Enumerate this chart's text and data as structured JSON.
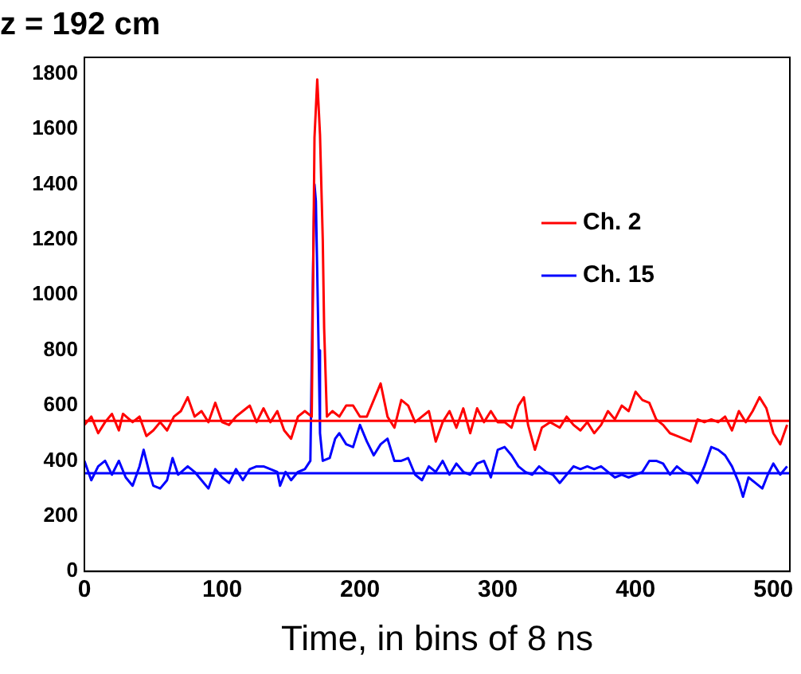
{
  "chart_data": {
    "type": "line",
    "title": "z = 192 cm",
    "xlabel": "Time, in bins of 8 ns",
    "xlim": [
      0,
      512
    ],
    "xticks": [
      0,
      100,
      200,
      300,
      400,
      500
    ],
    "ylim": [
      0,
      1860
    ],
    "yticks": [
      0,
      200,
      400,
      600,
      800,
      1000,
      1200,
      1400,
      1600,
      1800
    ],
    "grid": false,
    "legend": "right",
    "marker": "none",
    "line_style": "solid",
    "ref_lines": [
      {
        "axis": "y",
        "value": 545,
        "color": "#ff0000"
      },
      {
        "axis": "y",
        "value": 355,
        "color": "#0000ff"
      }
    ],
    "series": [
      {
        "name": "Ch. 2",
        "color": "#ff0000",
        "x": [
          0,
          5,
          10,
          15,
          20,
          25,
          28,
          35,
          40,
          45,
          50,
          55,
          60,
          65,
          70,
          75,
          80,
          85,
          90,
          95,
          100,
          105,
          110,
          115,
          120,
          125,
          130,
          135,
          140,
          145,
          150,
          155,
          160,
          165,
          167,
          169,
          171,
          173,
          174,
          176,
          180,
          185,
          190,
          195,
          200,
          205,
          210,
          215,
          220,
          225,
          230,
          235,
          240,
          245,
          250,
          255,
          260,
          265,
          270,
          275,
          280,
          285,
          290,
          295,
          300,
          305,
          310,
          315,
          319,
          322,
          327,
          332,
          338,
          345,
          350,
          355,
          360,
          365,
          370,
          375,
          380,
          385,
          390,
          395,
          400,
          405,
          410,
          415,
          420,
          425,
          430,
          435,
          440,
          445,
          450,
          455,
          460,
          465,
          470,
          475,
          480,
          485,
          490,
          495,
          500,
          505,
          510
        ],
        "values": [
          530,
          560,
          500,
          540,
          570,
          510,
          570,
          540,
          560,
          490,
          510,
          540,
          510,
          560,
          580,
          630,
          560,
          580,
          540,
          610,
          540,
          530,
          560,
          580,
          600,
          540,
          590,
          540,
          580,
          510,
          480,
          560,
          580,
          560,
          1570,
          1780,
          1580,
          1200,
          880,
          560,
          580,
          560,
          600,
          600,
          560,
          560,
          620,
          680,
          560,
          520,
          620,
          600,
          540,
          560,
          580,
          470,
          540,
          580,
          520,
          590,
          500,
          590,
          540,
          580,
          540,
          540,
          520,
          600,
          630,
          530,
          440,
          520,
          540,
          520,
          560,
          530,
          510,
          540,
          500,
          530,
          580,
          550,
          600,
          580,
          650,
          620,
          610,
          550,
          530,
          500,
          490,
          480,
          470,
          550,
          540,
          550,
          540,
          560,
          510,
          580,
          540,
          580,
          630,
          590,
          500,
          460,
          530
        ]
      },
      {
        "name": "Ch. 15",
        "color": "#0000ff",
        "x": [
          0,
          5,
          10,
          15,
          20,
          25,
          30,
          35,
          40,
          43,
          47,
          50,
          55,
          60,
          64,
          68,
          75,
          80,
          85,
          90,
          95,
          100,
          105,
          110,
          115,
          120,
          125,
          130,
          135,
          140,
          142,
          146,
          150,
          155,
          160,
          164,
          166,
          167,
          168,
          169,
          170,
          171,
          173,
          178,
          182,
          185,
          190,
          195,
          200,
          205,
          210,
          215,
          220,
          225,
          230,
          235,
          240,
          245,
          250,
          255,
          260,
          265,
          270,
          275,
          280,
          285,
          290,
          295,
          300,
          305,
          310,
          315,
          320,
          325,
          330,
          335,
          340,
          345,
          350,
          355,
          360,
          365,
          370,
          375,
          380,
          385,
          390,
          395,
          400,
          405,
          410,
          415,
          420,
          425,
          430,
          435,
          440,
          445,
          450,
          455,
          460,
          465,
          470,
          475,
          478,
          482,
          487,
          492,
          496,
          500,
          505,
          510
        ],
        "values": [
          400,
          330,
          380,
          400,
          350,
          400,
          340,
          310,
          380,
          440,
          360,
          310,
          300,
          330,
          410,
          350,
          380,
          360,
          330,
          300,
          370,
          340,
          320,
          370,
          330,
          370,
          380,
          380,
          370,
          360,
          310,
          360,
          330,
          360,
          370,
          400,
          1110,
          1400,
          1340,
          1080,
          800,
          500,
          400,
          410,
          480,
          500,
          460,
          450,
          530,
          470,
          420,
          460,
          480,
          400,
          400,
          410,
          350,
          330,
          380,
          360,
          400,
          350,
          390,
          360,
          350,
          390,
          400,
          340,
          440,
          450,
          420,
          380,
          360,
          350,
          380,
          360,
          350,
          320,
          350,
          380,
          370,
          380,
          370,
          380,
          360,
          340,
          350,
          340,
          350,
          360,
          400,
          400,
          390,
          350,
          380,
          360,
          350,
          320,
          380,
          450,
          440,
          420,
          380,
          320,
          270,
          340,
          320,
          300,
          350,
          390,
          350,
          380
        ]
      }
    ]
  }
}
